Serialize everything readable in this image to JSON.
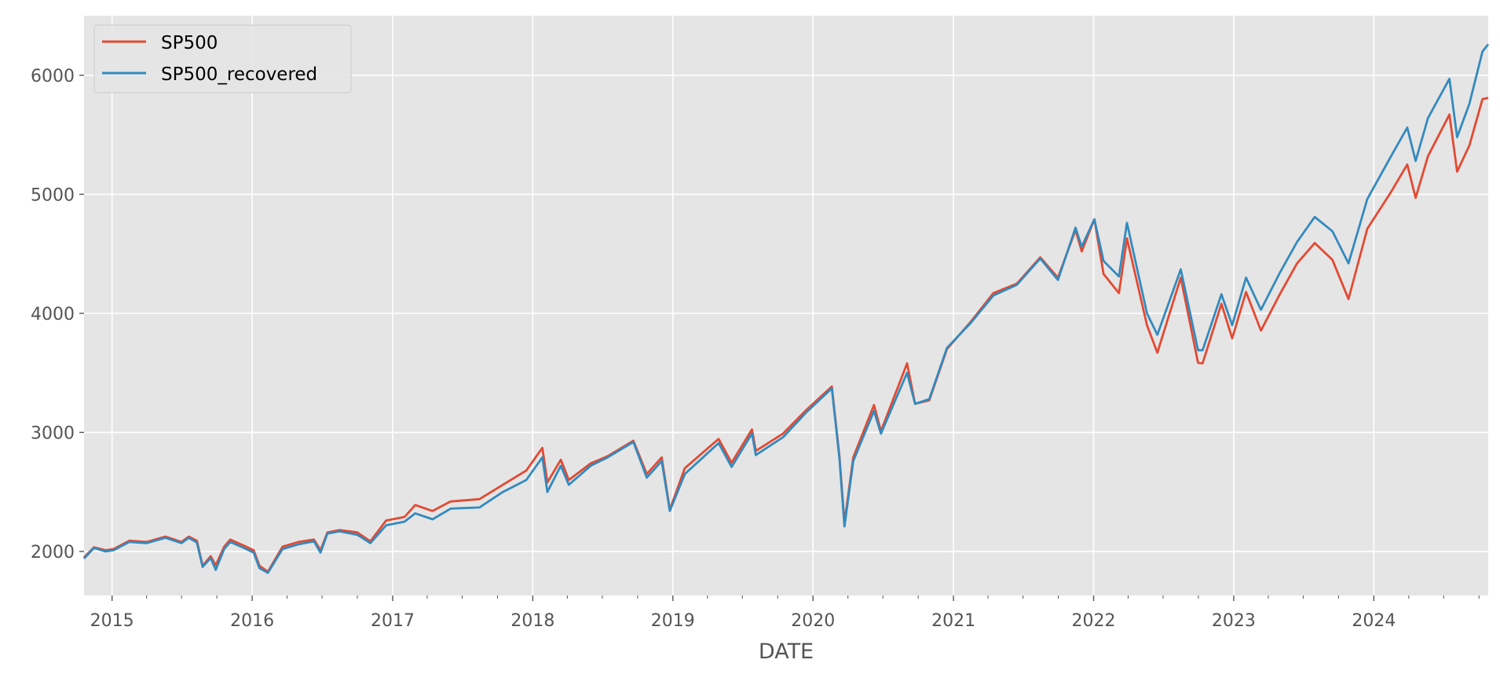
{
  "chart_data": {
    "type": "line",
    "xlabel": "DATE",
    "ylabel": "",
    "xlim": [
      "2014-10-20",
      "2024-10-25"
    ],
    "ylim": [
      1630,
      6500
    ],
    "grid": true,
    "legend_position": "top-left",
    "x_ticks": [
      "2015",
      "2016",
      "2017",
      "2018",
      "2019",
      "2020",
      "2021",
      "2022",
      "2023",
      "2024"
    ],
    "y_ticks": [
      2000,
      3000,
      4000,
      5000,
      6000
    ],
    "series": [
      {
        "name": "SP500",
        "color": "#e24a33",
        "points": [
          [
            "2014-10-20",
            1950
          ],
          [
            "2014-11-15",
            2035
          ],
          [
            "2014-12-15",
            2010
          ],
          [
            "2015-01-05",
            2020
          ],
          [
            "2015-02-15",
            2090
          ],
          [
            "2015-04-01",
            2080
          ],
          [
            "2015-05-20",
            2125
          ],
          [
            "2015-07-01",
            2080
          ],
          [
            "2015-07-20",
            2125
          ],
          [
            "2015-08-10",
            2090
          ],
          [
            "2015-08-25",
            1880
          ],
          [
            "2015-09-15",
            1960
          ],
          [
            "2015-09-28",
            1885
          ],
          [
            "2015-10-20",
            2040
          ],
          [
            "2015-11-05",
            2100
          ],
          [
            "2015-12-10",
            2050
          ],
          [
            "2016-01-05",
            2010
          ],
          [
            "2016-01-20",
            1880
          ],
          [
            "2016-02-11",
            1830
          ],
          [
            "2016-03-20",
            2040
          ],
          [
            "2016-05-01",
            2080
          ],
          [
            "2016-06-10",
            2100
          ],
          [
            "2016-06-27",
            2010
          ],
          [
            "2016-07-15",
            2160
          ],
          [
            "2016-08-15",
            2180
          ],
          [
            "2016-10-01",
            2160
          ],
          [
            "2016-11-04",
            2085
          ],
          [
            "2016-12-15",
            2260
          ],
          [
            "2017-02-01",
            2290
          ],
          [
            "2017-03-01",
            2390
          ],
          [
            "2017-04-15",
            2340
          ],
          [
            "2017-06-01",
            2420
          ],
          [
            "2017-08-15",
            2440
          ],
          [
            "2017-10-15",
            2560
          ],
          [
            "2017-12-15",
            2680
          ],
          [
            "2018-01-26",
            2870
          ],
          [
            "2018-02-08",
            2580
          ],
          [
            "2018-03-15",
            2770
          ],
          [
            "2018-04-05",
            2600
          ],
          [
            "2018-06-01",
            2740
          ],
          [
            "2018-07-15",
            2800
          ],
          [
            "2018-09-20",
            2930
          ],
          [
            "2018-10-25",
            2650
          ],
          [
            "2018-12-03",
            2790
          ],
          [
            "2018-12-24",
            2350
          ],
          [
            "2019-02-01",
            2700
          ],
          [
            "2019-04-30",
            2945
          ],
          [
            "2019-06-03",
            2745
          ],
          [
            "2019-07-26",
            3025
          ],
          [
            "2019-08-05",
            2845
          ],
          [
            "2019-10-15",
            2990
          ],
          [
            "2019-12-15",
            3190
          ],
          [
            "2020-02-19",
            3385
          ],
          [
            "2020-03-10",
            2800
          ],
          [
            "2020-03-23",
            2240
          ],
          [
            "2020-04-15",
            2790
          ],
          [
            "2020-06-08",
            3230
          ],
          [
            "2020-06-26",
            3010
          ],
          [
            "2020-09-02",
            3580
          ],
          [
            "2020-09-23",
            3240
          ],
          [
            "2020-10-30",
            3270
          ],
          [
            "2020-12-15",
            3700
          ],
          [
            "2021-02-15",
            3930
          ],
          [
            "2021-04-15",
            4170
          ],
          [
            "2021-06-15",
            4250
          ],
          [
            "2021-08-15",
            4470
          ],
          [
            "2021-09-30",
            4300
          ],
          [
            "2021-11-15",
            4700
          ],
          [
            "2021-12-01",
            4520
          ],
          [
            "2022-01-03",
            4790
          ],
          [
            "2022-01-27",
            4330
          ],
          [
            "2022-03-08",
            4170
          ],
          [
            "2022-03-29",
            4630
          ],
          [
            "2022-05-20",
            3900
          ],
          [
            "2022-06-16",
            3670
          ],
          [
            "2022-08-16",
            4300
          ],
          [
            "2022-09-30",
            3585
          ],
          [
            "2022-10-12",
            3580
          ],
          [
            "2022-11-30",
            4080
          ],
          [
            "2022-12-28",
            3790
          ],
          [
            "2023-02-02",
            4180
          ],
          [
            "2023-03-13",
            3855
          ],
          [
            "2023-05-01",
            4160
          ],
          [
            "2023-06-15",
            4420
          ],
          [
            "2023-07-31",
            4590
          ],
          [
            "2023-09-15",
            4450
          ],
          [
            "2023-10-27",
            4120
          ],
          [
            "2023-12-15",
            4710
          ],
          [
            "2024-02-15",
            5020
          ],
          [
            "2024-03-28",
            5250
          ],
          [
            "2024-04-19",
            4970
          ],
          [
            "2024-05-21",
            5320
          ],
          [
            "2024-07-16",
            5670
          ],
          [
            "2024-08-05",
            5190
          ],
          [
            "2024-09-06",
            5410
          ],
          [
            "2024-10-10",
            5800
          ],
          [
            "2024-10-25",
            5810
          ]
        ]
      },
      {
        "name": "SP500_recovered",
        "color": "#348abd",
        "points": [
          [
            "2014-10-20",
            1940
          ],
          [
            "2014-11-15",
            2030
          ],
          [
            "2014-12-15",
            2000
          ],
          [
            "2015-01-05",
            2010
          ],
          [
            "2015-02-15",
            2080
          ],
          [
            "2015-04-01",
            2070
          ],
          [
            "2015-05-20",
            2115
          ],
          [
            "2015-07-01",
            2070
          ],
          [
            "2015-07-20",
            2115
          ],
          [
            "2015-08-10",
            2075
          ],
          [
            "2015-08-25",
            1870
          ],
          [
            "2015-09-15",
            1945
          ],
          [
            "2015-09-28",
            1845
          ],
          [
            "2015-10-20",
            2020
          ],
          [
            "2015-11-05",
            2080
          ],
          [
            "2015-12-10",
            2030
          ],
          [
            "2016-01-05",
            1990
          ],
          [
            "2016-01-20",
            1860
          ],
          [
            "2016-02-11",
            1820
          ],
          [
            "2016-03-20",
            2020
          ],
          [
            "2016-05-01",
            2060
          ],
          [
            "2016-06-10",
            2085
          ],
          [
            "2016-06-27",
            1990
          ],
          [
            "2016-07-15",
            2150
          ],
          [
            "2016-08-15",
            2170
          ],
          [
            "2016-10-01",
            2140
          ],
          [
            "2016-11-04",
            2070
          ],
          [
            "2016-12-15",
            2220
          ],
          [
            "2017-02-01",
            2250
          ],
          [
            "2017-03-01",
            2320
          ],
          [
            "2017-04-15",
            2270
          ],
          [
            "2017-06-01",
            2360
          ],
          [
            "2017-08-15",
            2370
          ],
          [
            "2017-10-15",
            2500
          ],
          [
            "2017-12-15",
            2600
          ],
          [
            "2018-01-26",
            2790
          ],
          [
            "2018-02-08",
            2500
          ],
          [
            "2018-03-15",
            2720
          ],
          [
            "2018-04-05",
            2560
          ],
          [
            "2018-06-01",
            2720
          ],
          [
            "2018-07-15",
            2790
          ],
          [
            "2018-09-20",
            2920
          ],
          [
            "2018-10-25",
            2620
          ],
          [
            "2018-12-03",
            2760
          ],
          [
            "2018-12-24",
            2340
          ],
          [
            "2019-02-01",
            2650
          ],
          [
            "2019-04-30",
            2910
          ],
          [
            "2019-06-03",
            2710
          ],
          [
            "2019-07-26",
            2990
          ],
          [
            "2019-08-05",
            2810
          ],
          [
            "2019-10-15",
            2960
          ],
          [
            "2019-12-15",
            3170
          ],
          [
            "2020-02-19",
            3370
          ],
          [
            "2020-03-10",
            2780
          ],
          [
            "2020-03-23",
            2210
          ],
          [
            "2020-04-15",
            2760
          ],
          [
            "2020-06-08",
            3180
          ],
          [
            "2020-06-26",
            2990
          ],
          [
            "2020-09-02",
            3500
          ],
          [
            "2020-09-23",
            3240
          ],
          [
            "2020-10-30",
            3280
          ],
          [
            "2020-12-15",
            3710
          ],
          [
            "2021-02-15",
            3920
          ],
          [
            "2021-04-15",
            4150
          ],
          [
            "2021-06-15",
            4240
          ],
          [
            "2021-08-15",
            4460
          ],
          [
            "2021-09-30",
            4280
          ],
          [
            "2021-11-15",
            4720
          ],
          [
            "2021-12-01",
            4560
          ],
          [
            "2022-01-03",
            4790
          ],
          [
            "2022-01-27",
            4440
          ],
          [
            "2022-03-08",
            4310
          ],
          [
            "2022-03-29",
            4760
          ],
          [
            "2022-05-20",
            4000
          ],
          [
            "2022-06-16",
            3820
          ],
          [
            "2022-08-16",
            4370
          ],
          [
            "2022-09-30",
            3690
          ],
          [
            "2022-10-12",
            3690
          ],
          [
            "2022-11-30",
            4160
          ],
          [
            "2022-12-28",
            3900
          ],
          [
            "2023-02-02",
            4300
          ],
          [
            "2023-03-13",
            4030
          ],
          [
            "2023-05-01",
            4340
          ],
          [
            "2023-06-15",
            4600
          ],
          [
            "2023-07-31",
            4810
          ],
          [
            "2023-09-15",
            4690
          ],
          [
            "2023-10-27",
            4420
          ],
          [
            "2023-12-15",
            4960
          ],
          [
            "2024-02-15",
            5320
          ],
          [
            "2024-03-28",
            5560
          ],
          [
            "2024-04-19",
            5280
          ],
          [
            "2024-05-21",
            5640
          ],
          [
            "2024-07-16",
            5970
          ],
          [
            "2024-08-05",
            5480
          ],
          [
            "2024-09-06",
            5760
          ],
          [
            "2024-10-10",
            6200
          ],
          [
            "2024-10-25",
            6260
          ]
        ]
      }
    ]
  }
}
